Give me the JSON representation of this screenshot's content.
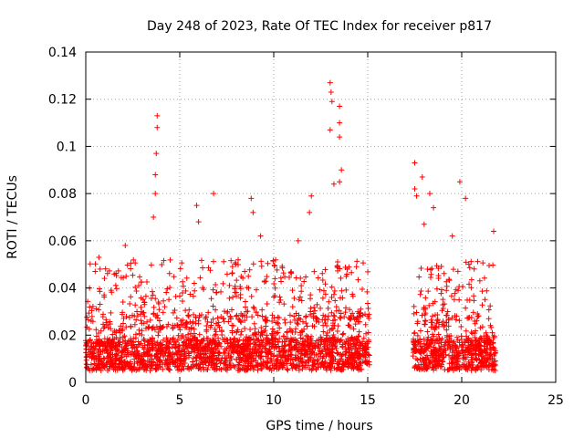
{
  "chart_data": {
    "type": "scatter",
    "title": "Day 248 of 2023, Rate Of TEC Index for receiver p817",
    "xlabel": "GPS time / hours",
    "ylabel": "ROTI / TECUs",
    "xlim": [
      0,
      25
    ],
    "ylim": [
      0,
      0.14
    ],
    "grid": true,
    "marker": "plus",
    "color": "#ff0000",
    "x_ticks": [
      0,
      5,
      10,
      15,
      20,
      25
    ],
    "x_tick_labels": [
      "0",
      "5",
      "10",
      "15",
      "20",
      "25"
    ],
    "y_ticks": [
      0,
      0.02,
      0.04,
      0.06,
      0.08,
      0.1,
      0.12,
      0.14
    ],
    "y_tick_labels": [
      "0",
      "0.02",
      "0.04",
      "0.06",
      "0.08",
      "0.1",
      "0.12",
      "0.14"
    ],
    "data_segments": [
      {
        "x_range": [
          0.0,
          15.1
        ],
        "typical_range": [
          0.005,
          0.03
        ]
      },
      {
        "x_range": [
          17.4,
          21.8
        ],
        "typical_range": [
          0.005,
          0.03
        ]
      }
    ],
    "notable_points": [
      {
        "x": 0.2,
        "y": 0.04
      },
      {
        "x": 0.5,
        "y": 0.047
      },
      {
        "x": 0.7,
        "y": 0.053
      },
      {
        "x": 2.1,
        "y": 0.058
      },
      {
        "x": 3.6,
        "y": 0.07
      },
      {
        "x": 3.7,
        "y": 0.08
      },
      {
        "x": 3.7,
        "y": 0.088
      },
      {
        "x": 3.75,
        "y": 0.097
      },
      {
        "x": 3.8,
        "y": 0.108
      },
      {
        "x": 3.8,
        "y": 0.113
      },
      {
        "x": 5.9,
        "y": 0.075
      },
      {
        "x": 6.0,
        "y": 0.068
      },
      {
        "x": 6.8,
        "y": 0.08
      },
      {
        "x": 8.8,
        "y": 0.078
      },
      {
        "x": 8.9,
        "y": 0.072
      },
      {
        "x": 9.3,
        "y": 0.062
      },
      {
        "x": 11.3,
        "y": 0.06
      },
      {
        "x": 11.9,
        "y": 0.072
      },
      {
        "x": 12.0,
        "y": 0.079
      },
      {
        "x": 13.0,
        "y": 0.127
      },
      {
        "x": 13.05,
        "y": 0.123
      },
      {
        "x": 13.1,
        "y": 0.119
      },
      {
        "x": 13.0,
        "y": 0.107
      },
      {
        "x": 13.5,
        "y": 0.117
      },
      {
        "x": 13.5,
        "y": 0.11
      },
      {
        "x": 13.5,
        "y": 0.104
      },
      {
        "x": 13.6,
        "y": 0.09
      },
      {
        "x": 13.5,
        "y": 0.085
      },
      {
        "x": 13.2,
        "y": 0.084
      },
      {
        "x": 17.5,
        "y": 0.093
      },
      {
        "x": 17.5,
        "y": 0.082
      },
      {
        "x": 17.6,
        "y": 0.079
      },
      {
        "x": 17.9,
        "y": 0.087
      },
      {
        "x": 18.0,
        "y": 0.067
      },
      {
        "x": 18.3,
        "y": 0.08
      },
      {
        "x": 18.5,
        "y": 0.074
      },
      {
        "x": 19.5,
        "y": 0.062
      },
      {
        "x": 19.9,
        "y": 0.085
      },
      {
        "x": 20.2,
        "y": 0.078
      },
      {
        "x": 21.7,
        "y": 0.064
      }
    ]
  }
}
